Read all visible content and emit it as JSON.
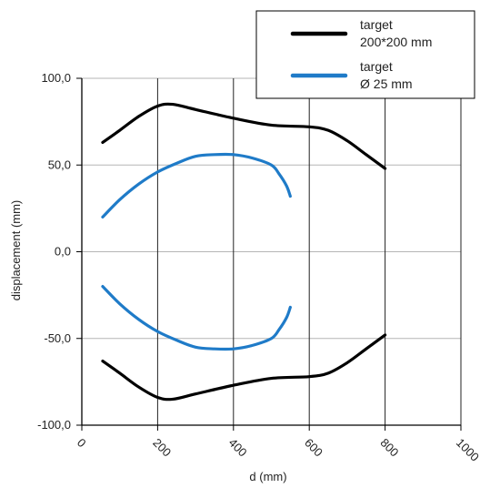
{
  "chart_data": {
    "type": "line",
    "title": "",
    "xlabel": "d (mm)",
    "ylabel": "displacement (mm)",
    "xlim": [
      0,
      1000
    ],
    "ylim": [
      -100,
      100
    ],
    "x_ticks": [
      0,
      200,
      400,
      600,
      800,
      1000
    ],
    "x_tick_labels": [
      "0",
      "200",
      "400",
      "600",
      "800",
      "1000"
    ],
    "y_ticks": [
      100,
      50,
      0,
      -50,
      -100
    ],
    "y_tick_labels": [
      "100,0",
      "50,0",
      "0,0",
      "-50,0",
      "-100,0"
    ],
    "grid": true,
    "legend_position": "top-right",
    "legend": [
      {
        "label_line1": "target",
        "label_line2": "200*200 mm",
        "color": "#000000"
      },
      {
        "label_line1": "target",
        "label_line2": "Ø 25 mm",
        "color": "#1f7bc8"
      }
    ],
    "series": [
      {
        "group": "target 200*200 mm",
        "color": "#000000",
        "x": [
          55,
          100,
          150,
          200,
          240,
          300,
          400,
          500,
          600,
          650,
          700,
          750,
          800
        ],
        "y": [
          63,
          70,
          78,
          84,
          85,
          82,
          77,
          73,
          72,
          70,
          64,
          56,
          48
        ]
      },
      {
        "group": "target 200*200 mm",
        "color": "#000000",
        "x": [
          55,
          100,
          150,
          200,
          240,
          300,
          400,
          500,
          600,
          650,
          700,
          750,
          800
        ],
        "y": [
          -63,
          -70,
          -78,
          -84,
          -85,
          -82,
          -77,
          -73,
          -72,
          -70,
          -64,
          -56,
          -48
        ]
      },
      {
        "group": "target Ø 25 mm",
        "color": "#1f7bc8",
        "x": [
          55,
          100,
          150,
          200,
          250,
          300,
          350,
          400,
          450,
          500,
          520,
          540,
          550
        ],
        "y": [
          20,
          30,
          39,
          46,
          51,
          55,
          56,
          56,
          54,
          50,
          45,
          38,
          32
        ]
      },
      {
        "group": "target Ø 25 mm",
        "color": "#1f7bc8",
        "x": [
          55,
          100,
          150,
          200,
          250,
          300,
          350,
          400,
          450,
          500,
          520,
          540,
          550
        ],
        "y": [
          -20,
          -30,
          -39,
          -46,
          -51,
          -55,
          -56,
          -56,
          -54,
          -50,
          -45,
          -38,
          -32
        ]
      }
    ]
  }
}
